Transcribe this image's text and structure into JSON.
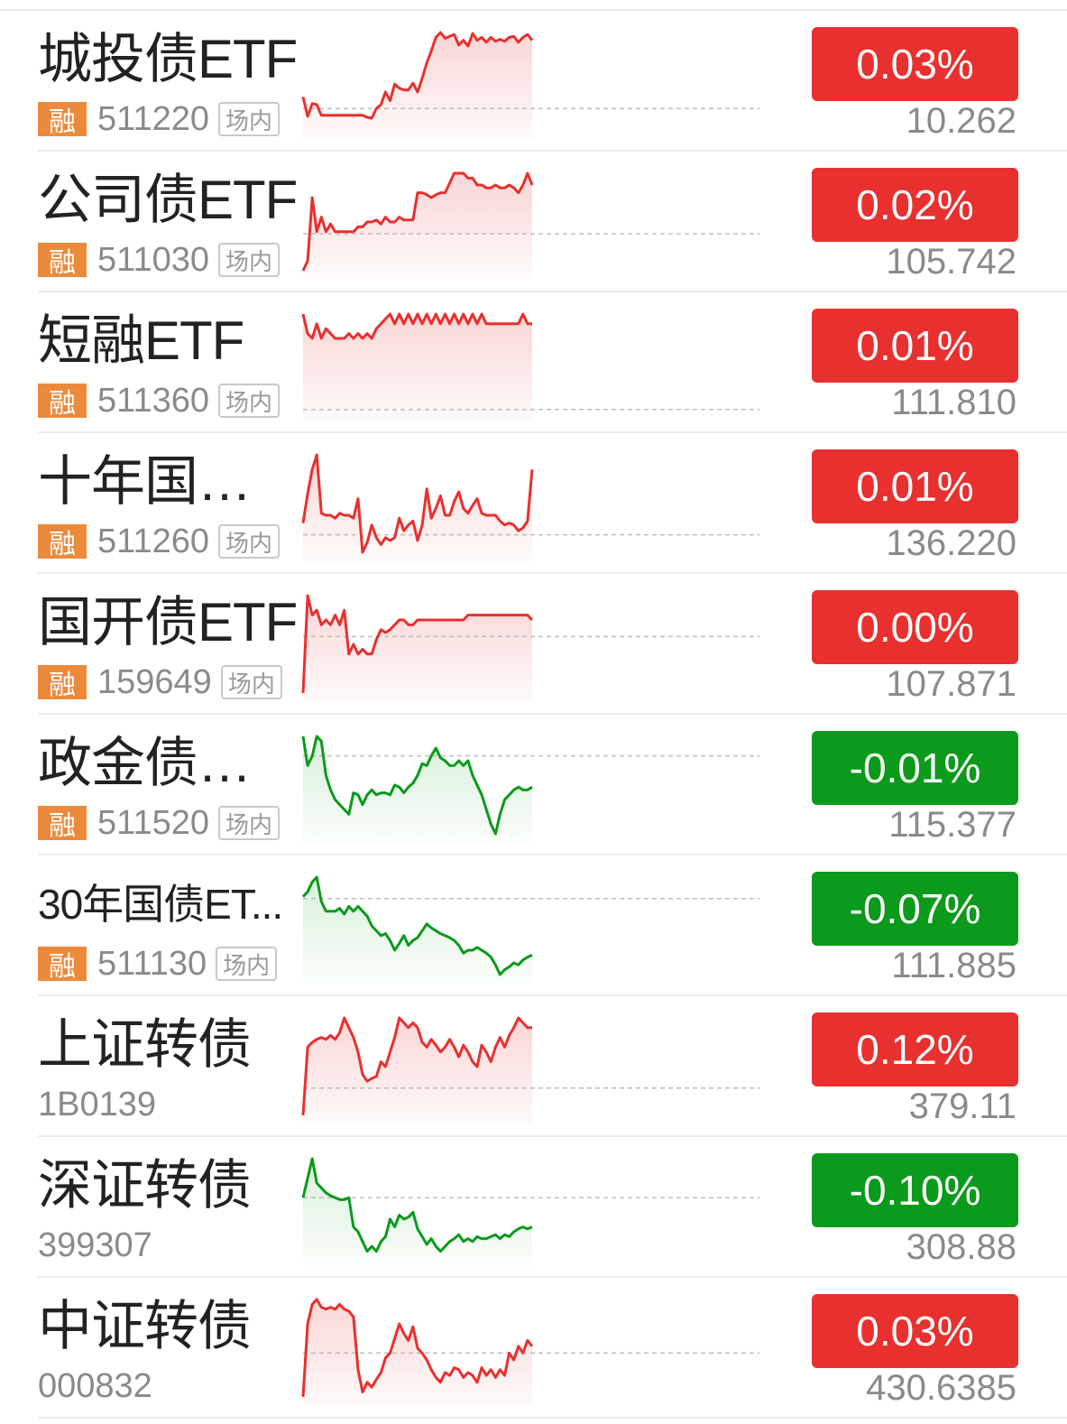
{
  "colors": {
    "up": "#e8302f",
    "down": "#0b9a1b",
    "up_fill": "#f9d3d3",
    "down_fill": "#d6efd8"
  },
  "items": [
    {
      "name": "城投债ETF",
      "margin_tag": "融",
      "code": "511220",
      "venue": "场内",
      "change": "0.03%",
      "price": "10.262",
      "trend": "up",
      "spark": {
        "series": [
          0.66,
          0.86,
          0.73,
          0.74,
          0.85,
          0.85,
          0.85,
          0.85,
          0.85,
          0.85,
          0.85,
          0.85,
          0.85,
          0.85,
          0.87,
          0.88,
          0.78,
          0.74,
          0.61,
          0.7,
          0.53,
          0.57,
          0.59,
          0.59,
          0.52,
          0.61,
          0.47,
          0.31,
          0.19,
          0.05,
          0.0,
          0.06,
          0.04,
          0.02,
          0.13,
          0.08,
          0.14,
          0.01,
          0.08,
          0.05,
          0.1,
          0.05,
          0.09,
          0.07,
          0.09,
          0.05,
          0.04,
          0.1,
          0.05,
          0.02,
          0.08
        ],
        "baseline": 0.78
      }
    },
    {
      "name": "公司债ETF",
      "margin_tag": "融",
      "code": "511030",
      "venue": "场内",
      "change": "0.02%",
      "price": "105.742",
      "trend": "up",
      "spark": {
        "series": [
          1.0,
          0.9,
          0.25,
          0.6,
          0.45,
          0.6,
          0.52,
          0.6,
          0.6,
          0.6,
          0.6,
          0.6,
          0.55,
          0.55,
          0.5,
          0.5,
          0.48,
          0.52,
          0.45,
          0.5,
          0.5,
          0.45,
          0.48,
          0.48,
          0.48,
          0.2,
          0.2,
          0.22,
          0.25,
          0.22,
          0.2,
          0.2,
          0.1,
          0.0,
          0.0,
          0.0,
          0.05,
          0.05,
          0.12,
          0.12,
          0.15,
          0.15,
          0.12,
          0.15,
          0.15,
          0.12,
          0.15,
          0.2,
          0.12,
          0.0,
          0.12
        ],
        "baseline": 0.62
      }
    },
    {
      "name": "短融ETF",
      "margin_tag": "融",
      "code": "511360",
      "venue": "场内",
      "change": "0.01%",
      "price": "111.810",
      "trend": "up",
      "spark": {
        "series": [
          0.0,
          0.2,
          0.25,
          0.1,
          0.25,
          0.15,
          0.2,
          0.25,
          0.25,
          0.25,
          0.2,
          0.25,
          0.2,
          0.25,
          0.2,
          0.25,
          0.15,
          0.1,
          0.05,
          0.0,
          0.1,
          0.0,
          0.1,
          0.0,
          0.1,
          0.0,
          0.1,
          0.0,
          0.1,
          0.0,
          0.1,
          0.0,
          0.1,
          0.0,
          0.1,
          0.0,
          0.1,
          0.0,
          0.1,
          0.0,
          0.1,
          0.1,
          0.1,
          0.1,
          0.1,
          0.1,
          0.1,
          0.1,
          0.0,
          0.1,
          0.1
        ],
        "baseline": 0.98
      }
    },
    {
      "name": "十年国债ETF",
      "margin_tag": "融",
      "code": "511260",
      "venue": "场内",
      "change": "0.01%",
      "price": "136.220",
      "trend": "up",
      "spark": {
        "series": [
          0.7,
          0.4,
          0.15,
          0.0,
          0.6,
          0.62,
          0.62,
          0.65,
          0.6,
          0.62,
          0.62,
          0.65,
          0.45,
          1.0,
          0.9,
          0.72,
          0.85,
          0.92,
          0.85,
          0.88,
          0.85,
          0.65,
          0.78,
          0.72,
          0.68,
          0.88,
          0.72,
          0.35,
          0.65,
          0.55,
          0.42,
          0.62,
          0.62,
          0.48,
          0.38,
          0.55,
          0.6,
          0.52,
          0.45,
          0.6,
          0.62,
          0.62,
          0.62,
          0.68,
          0.72,
          0.7,
          0.72,
          0.78,
          0.75,
          0.68,
          0.15
        ],
        "baseline": 0.82
      }
    },
    {
      "name": "国开债ETF",
      "margin_tag": "融",
      "code": "159649",
      "venue": "场内",
      "change": "0.00%",
      "price": "107.871",
      "trend": "up",
      "spark": {
        "series": [
          1.0,
          0.0,
          0.2,
          0.15,
          0.3,
          0.25,
          0.3,
          0.2,
          0.3,
          0.15,
          0.6,
          0.5,
          0.6,
          0.55,
          0.6,
          0.6,
          0.45,
          0.35,
          0.38,
          0.35,
          0.3,
          0.25,
          0.25,
          0.3,
          0.3,
          0.25,
          0.25,
          0.25,
          0.25,
          0.25,
          0.25,
          0.25,
          0.25,
          0.25,
          0.25,
          0.25,
          0.2,
          0.2,
          0.2,
          0.2,
          0.2,
          0.2,
          0.2,
          0.2,
          0.2,
          0.2,
          0.2,
          0.2,
          0.2,
          0.2,
          0.25
        ],
        "baseline": 0.42
      }
    },
    {
      "name": "政金债券ETF",
      "margin_tag": "融",
      "code": "511520",
      "venue": "场内",
      "change": "-0.01%",
      "price": "115.377",
      "trend": "down",
      "spark": {
        "series": [
          0.0,
          0.3,
          0.2,
          0.0,
          0.05,
          0.4,
          0.55,
          0.65,
          0.7,
          0.75,
          0.8,
          0.58,
          0.6,
          0.7,
          0.6,
          0.55,
          0.6,
          0.58,
          0.58,
          0.6,
          0.5,
          0.52,
          0.58,
          0.52,
          0.48,
          0.4,
          0.28,
          0.3,
          0.2,
          0.12,
          0.22,
          0.25,
          0.3,
          0.3,
          0.25,
          0.3,
          0.25,
          0.4,
          0.5,
          0.6,
          0.75,
          0.9,
          1.0,
          0.8,
          0.65,
          0.6,
          0.55,
          0.52,
          0.55,
          0.55,
          0.52
        ],
        "baseline": 0.2
      }
    },
    {
      "name": "30年国债ET...",
      "margin_tag": "融",
      "code": "511130",
      "venue": "场内",
      "change": "-0.07%",
      "price": "111.885",
      "trend": "down",
      "spark": {
        "series": [
          0.2,
          0.15,
          0.05,
          0.0,
          0.25,
          0.35,
          0.35,
          0.35,
          0.32,
          0.38,
          0.3,
          0.35,
          0.3,
          0.35,
          0.4,
          0.5,
          0.55,
          0.6,
          0.58,
          0.65,
          0.75,
          0.68,
          0.6,
          0.7,
          0.65,
          0.62,
          0.55,
          0.48,
          0.52,
          0.55,
          0.58,
          0.6,
          0.62,
          0.65,
          0.7,
          0.78,
          0.75,
          0.75,
          0.72,
          0.75,
          0.78,
          0.82,
          0.9,
          1.0,
          0.95,
          0.92,
          0.88,
          0.9,
          0.85,
          0.82,
          0.8
        ],
        "baseline": 0.22
      }
    },
    {
      "name": "上证转债",
      "margin_tag": "",
      "code": "1B0139",
      "venue": "",
      "change": "0.12%",
      "price": "379.11",
      "trend": "up",
      "spark": {
        "series": [
          1.0,
          0.3,
          0.25,
          0.22,
          0.2,
          0.22,
          0.18,
          0.22,
          0.15,
          0.0,
          0.1,
          0.2,
          0.35,
          0.58,
          0.65,
          0.62,
          0.6,
          0.45,
          0.5,
          0.35,
          0.2,
          0.0,
          0.05,
          0.1,
          0.05,
          0.1,
          0.25,
          0.3,
          0.22,
          0.28,
          0.35,
          0.3,
          0.22,
          0.3,
          0.4,
          0.28,
          0.35,
          0.45,
          0.5,
          0.28,
          0.35,
          0.45,
          0.3,
          0.2,
          0.3,
          0.18,
          0.1,
          0.0,
          0.05,
          0.1,
          0.1
        ],
        "baseline": 0.72
      }
    },
    {
      "name": "深证转债",
      "margin_tag": "",
      "code": "399307",
      "venue": "",
      "change": "-0.10%",
      "price": "308.88",
      "trend": "down",
      "spark": {
        "series": [
          0.4,
          0.2,
          0.0,
          0.25,
          0.3,
          0.35,
          0.38,
          0.4,
          0.42,
          0.42,
          0.4,
          0.7,
          0.75,
          0.85,
          0.95,
          0.9,
          0.95,
          0.85,
          0.8,
          0.62,
          0.7,
          0.58,
          0.62,
          0.6,
          0.55,
          0.72,
          0.8,
          0.88,
          0.82,
          0.9,
          0.95,
          0.9,
          0.85,
          0.82,
          0.78,
          0.85,
          0.82,
          0.85,
          0.8,
          0.82,
          0.82,
          0.8,
          0.78,
          0.82,
          0.78,
          0.8,
          0.75,
          0.72,
          0.7,
          0.72,
          0.7
        ],
        "baseline": 0.4
      }
    },
    {
      "name": "中证转债",
      "margin_tag": "",
      "code": "000832",
      "venue": "",
      "change": "0.03%",
      "price": "430.6385",
      "trend": "up",
      "spark": {
        "series": [
          1.0,
          0.25,
          0.05,
          0.0,
          0.08,
          0.1,
          0.08,
          0.1,
          0.05,
          0.1,
          0.12,
          0.18,
          0.72,
          0.95,
          0.85,
          0.9,
          0.82,
          0.75,
          0.6,
          0.55,
          0.4,
          0.25,
          0.35,
          0.42,
          0.28,
          0.5,
          0.55,
          0.62,
          0.72,
          0.8,
          0.85,
          0.75,
          0.78,
          0.7,
          0.72,
          0.8,
          0.75,
          0.78,
          0.85,
          0.7,
          0.78,
          0.72,
          0.8,
          0.72,
          0.78,
          0.55,
          0.62,
          0.48,
          0.55,
          0.42,
          0.48
        ],
        "baseline": 0.55
      }
    }
  ]
}
